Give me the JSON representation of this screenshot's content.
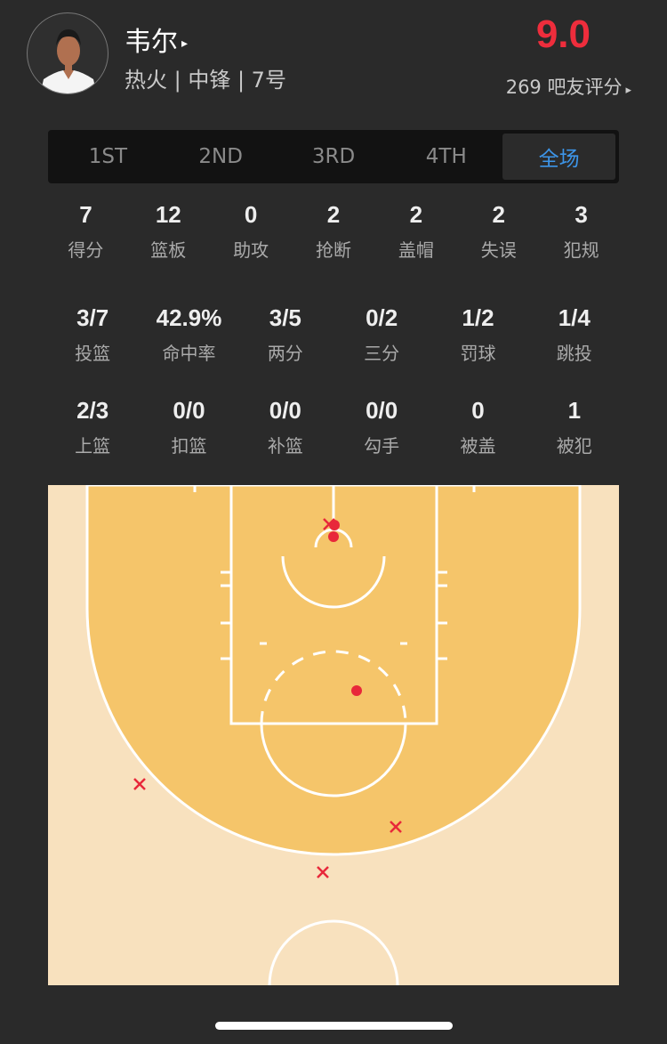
{
  "player": {
    "name": "韦尔",
    "info": "热火 | 中锋 | 7号",
    "rating": "9.0",
    "rating_count": "269 吧友评分",
    "arrow": "▸"
  },
  "tabs": [
    {
      "label": "1ST"
    },
    {
      "label": "2ND"
    },
    {
      "label": "3RD"
    },
    {
      "label": "4TH"
    },
    {
      "label": "全场",
      "active": true
    }
  ],
  "basic_stats": [
    {
      "v": "7",
      "l": "得分"
    },
    {
      "v": "12",
      "l": "篮板"
    },
    {
      "v": "0",
      "l": "助攻"
    },
    {
      "v": "2",
      "l": "抢断"
    },
    {
      "v": "2",
      "l": "盖帽"
    },
    {
      "v": "2",
      "l": "失误"
    },
    {
      "v": "3",
      "l": "犯规"
    }
  ],
  "shooting_stats": [
    {
      "v": "3/7",
      "l": "投篮"
    },
    {
      "v": "42.9%",
      "l": "命中率"
    },
    {
      "v": "3/5",
      "l": "两分"
    },
    {
      "v": "0/2",
      "l": "三分"
    },
    {
      "v": "1/2",
      "l": "罚球"
    },
    {
      "v": "1/4",
      "l": "跳投"
    }
  ],
  "shot_type_stats": [
    {
      "v": "2/3",
      "l": "上篮"
    },
    {
      "v": "0/0",
      "l": "扣篮"
    },
    {
      "v": "0/0",
      "l": "补篮"
    },
    {
      "v": "0/0",
      "l": "勾手"
    },
    {
      "v": "0",
      "l": "被盖"
    },
    {
      "v": "1",
      "l": "被犯"
    }
  ],
  "shot_chart": {
    "made_count": 3,
    "missed_count": 4,
    "colors": {
      "made": "#e8283a",
      "missed": "#e8283a",
      "court_inner": "#f5c56a",
      "court_outer": "#f8e1be",
      "lines": "#ffffff"
    }
  },
  "colors": {
    "accent": "#3d95e8",
    "rating": "#ee2d3c",
    "background": "#2a2a2a"
  }
}
